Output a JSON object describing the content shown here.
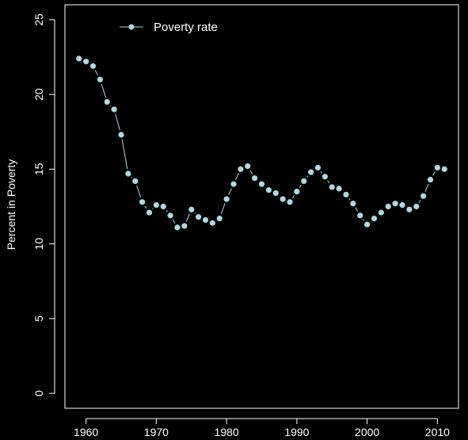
{
  "chart_data": {
    "type": "line",
    "title": "",
    "xlabel": "",
    "ylabel": "Percent in Poverty",
    "xlim": [
      1957,
      2013
    ],
    "ylim": [
      -1,
      26
    ],
    "xticks": [
      1960,
      1970,
      1980,
      1990,
      2000,
      2010
    ],
    "yticks": [
      0,
      5,
      10,
      15,
      20,
      25
    ],
    "grid": false,
    "legend_position": "top-left",
    "colors": {
      "background": "#000000",
      "axis": "#ffffff",
      "series": "#add8e6"
    },
    "series": [
      {
        "name": "Poverty rate",
        "x": [
          1959,
          1960,
          1961,
          1962,
          1963,
          1964,
          1965,
          1966,
          1967,
          1968,
          1969,
          1970,
          1971,
          1972,
          1973,
          1974,
          1975,
          1976,
          1977,
          1978,
          1979,
          1980,
          1981,
          1982,
          1983,
          1984,
          1985,
          1986,
          1987,
          1988,
          1989,
          1990,
          1991,
          1992,
          1993,
          1994,
          1995,
          1996,
          1997,
          1998,
          1999,
          2000,
          2001,
          2002,
          2003,
          2004,
          2005,
          2006,
          2007,
          2008,
          2009,
          2010,
          2011
        ],
        "y": [
          22.4,
          22.2,
          21.9,
          21.0,
          19.5,
          19.0,
          17.3,
          14.7,
          14.2,
          12.8,
          12.1,
          12.6,
          12.5,
          11.9,
          11.1,
          11.2,
          12.3,
          11.8,
          11.6,
          11.4,
          11.7,
          13.0,
          14.0,
          15.0,
          15.2,
          14.4,
          14.0,
          13.6,
          13.4,
          13.0,
          12.8,
          13.5,
          14.2,
          14.8,
          15.1,
          14.5,
          13.8,
          13.7,
          13.3,
          12.7,
          11.9,
          11.3,
          11.7,
          12.1,
          12.5,
          12.7,
          12.6,
          12.3,
          12.5,
          13.2,
          14.3,
          15.1,
          15.0
        ]
      }
    ]
  }
}
